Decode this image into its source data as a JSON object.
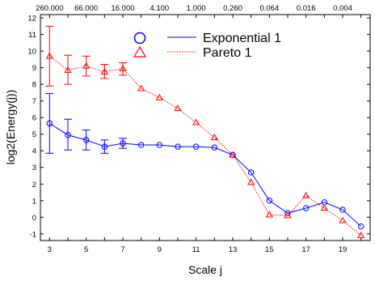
{
  "chart_data": {
    "type": "line",
    "xlabel": "Scale j",
    "ylabel": "log2(Energy(j))",
    "xlim": [
      2.5,
      20.5
    ],
    "ylim": [
      -1.4,
      12.2
    ],
    "x_ticks": [
      3,
      5,
      7,
      9,
      11,
      13,
      15,
      17,
      19
    ],
    "y_ticks": [
      -1,
      0,
      1,
      2,
      3,
      4,
      5,
      6,
      7,
      8,
      9,
      10,
      11,
      12
    ],
    "top_axis": {
      "tick_scales": [
        3,
        5,
        7,
        9,
        11,
        13,
        15,
        17,
        19
      ],
      "labels": [
        "260.000",
        "66.000",
        "16.000",
        "4.100",
        "1.000",
        "0.260",
        "0.064",
        "0.016",
        "0.004"
      ]
    },
    "x": [
      3,
      4,
      5,
      6,
      7,
      8,
      9,
      10,
      11,
      12,
      13,
      14,
      15,
      16,
      17,
      18,
      19,
      20
    ],
    "series": [
      {
        "name": "Exponential 1",
        "color": "#0000ff",
        "marker": "circle",
        "line_style": "solid",
        "values": [
          5.65,
          4.95,
          4.65,
          4.25,
          4.45,
          4.35,
          4.35,
          4.25,
          4.25,
          4.2,
          3.75,
          2.7,
          1.0,
          0.25,
          0.55,
          0.9,
          0.45,
          -0.55
        ],
        "error_low": [
          3.85,
          4.05,
          4.05,
          3.85,
          4.15,
          null,
          null,
          null,
          null,
          null,
          null,
          null,
          null,
          null,
          null,
          null,
          null,
          null
        ],
        "error_high": [
          7.45,
          5.9,
          5.25,
          4.65,
          4.75,
          null,
          null,
          null,
          null,
          null,
          null,
          null,
          null,
          null,
          null,
          null,
          null,
          null
        ]
      },
      {
        "name": "Pareto 1",
        "color": "#ff0000",
        "marker": "triangle",
        "line_style": "dotted",
        "values": [
          9.7,
          8.85,
          9.1,
          8.75,
          8.95,
          7.75,
          7.2,
          6.55,
          5.7,
          4.8,
          3.75,
          2.1,
          0.15,
          0.1,
          1.3,
          0.55,
          -0.2,
          -1.1
        ],
        "error_low": [
          7.9,
          8.0,
          8.5,
          8.35,
          8.55,
          null,
          null,
          null,
          null,
          null,
          null,
          null,
          null,
          null,
          null,
          null,
          null,
          null
        ],
        "error_high": [
          11.5,
          9.75,
          9.7,
          9.2,
          9.3,
          null,
          null,
          null,
          null,
          null,
          null,
          null,
          null,
          null,
          null,
          null,
          null,
          null
        ]
      }
    ],
    "legend_position": "top-right"
  }
}
